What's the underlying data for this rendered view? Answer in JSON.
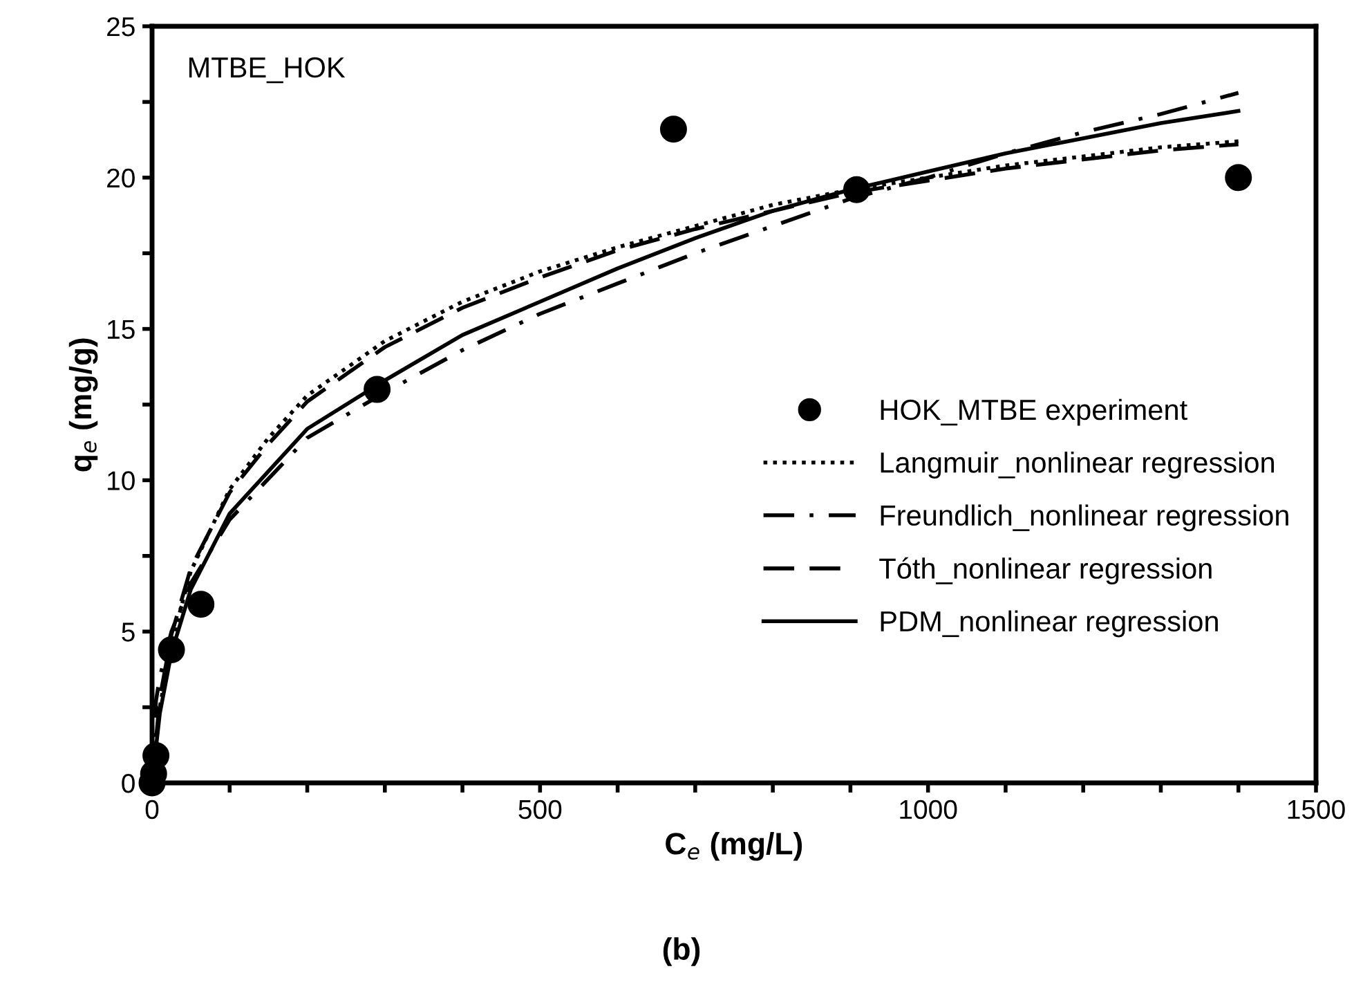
{
  "chart_data": {
    "type": "line",
    "xlabel": "C$_{e}$ (mg/L)",
    "ylabel": "q$_{e}$ (mg/g)",
    "annotations": [
      "MTBE_HOK",
      "(b)"
    ],
    "xlim": [
      0,
      1500
    ],
    "ylim": [
      0,
      25
    ],
    "xticks": [
      0,
      {
        "value": 100,
        "label": null
      },
      {
        "value": 200,
        "label": null
      },
      {
        "value": 300,
        "label": null
      },
      {
        "value": 400,
        "label": null
      },
      500,
      {
        "value": 600,
        "label": null
      },
      {
        "value": 700,
        "label": null
      },
      {
        "value": 800,
        "label": null
      },
      {
        "value": 900,
        "label": null
      },
      1000,
      {
        "value": 1100,
        "label": null
      },
      {
        "value": 1200,
        "label": null
      },
      {
        "value": 1300,
        "label": null
      },
      {
        "value": 1400,
        "label": null
      },
      1500
    ],
    "yticks": [
      0,
      {
        "value": 2.5,
        "label": null
      },
      5,
      {
        "value": 7.5,
        "label": null
      },
      10,
      {
        "value": 12.5,
        "label": null
      },
      15,
      {
        "value": 17.5,
        "label": null
      },
      20,
      {
        "value": 22.5,
        "label": null
      },
      25
    ],
    "grid": false,
    "legend": "right",
    "series": [
      {
        "name": "HOK_MTBE experiment",
        "type": "scatter",
        "marker": "circle",
        "color": "#000000",
        "x": [
          0,
          2,
          5,
          25,
          63,
          290,
          672,
          908,
          1400
        ],
        "values": [
          0,
          0.3,
          0.9,
          4.4,
          5.9,
          13.0,
          21.6,
          19.6,
          20.0
        ]
      },
      {
        "name": "Langmuir_nonlinear regression",
        "line_style": "dotted",
        "color": "#000000",
        "x": [
          0,
          10,
          25,
          50,
          100,
          150,
          200,
          300,
          400,
          500,
          600,
          700,
          800,
          900,
          1000,
          1100,
          1200,
          1300,
          1400
        ],
        "values": [
          0,
          2.5,
          4.6,
          7.0,
          9.7,
          11.4,
          12.8,
          14.6,
          15.9,
          16.9,
          17.7,
          18.4,
          19.1,
          19.6,
          20.0,
          20.4,
          20.7,
          21.0,
          21.2
        ]
      },
      {
        "name": "Freundlich_nonlinear regression",
        "line_style": "dashdot",
        "color": "#000000",
        "x": [
          0,
          5,
          10,
          25,
          50,
          100,
          200,
          300,
          400,
          500,
          600,
          700,
          800,
          900,
          1000,
          1100,
          1200,
          1300,
          1400
        ],
        "values": [
          0,
          2.7,
          3.5,
          5.0,
          6.6,
          8.7,
          11.4,
          12.9,
          14.3,
          15.5,
          16.5,
          17.5,
          18.4,
          19.3,
          20.0,
          20.8,
          21.5,
          22.1,
          22.8
        ]
      },
      {
        "name": "Tóth_nonlinear regression",
        "line_style": "dashed",
        "color": "#000000",
        "x": [
          0,
          10,
          25,
          50,
          100,
          150,
          200,
          300,
          400,
          500,
          600,
          700,
          800,
          900,
          1000,
          1100,
          1200,
          1300,
          1400
        ],
        "values": [
          0,
          2.8,
          4.9,
          7.1,
          9.6,
          11.2,
          12.6,
          14.4,
          15.7,
          16.7,
          17.6,
          18.3,
          18.9,
          19.5,
          19.9,
          20.3,
          20.6,
          20.9,
          21.1
        ]
      },
      {
        "name": "PDM_nonlinear regression",
        "line_style": "solid",
        "color": "#000000",
        "x": [
          0,
          10,
          25,
          50,
          100,
          200,
          300,
          400,
          500,
          600,
          700,
          800,
          900,
          1000,
          1100,
          1200,
          1300,
          1400
        ],
        "values": [
          0,
          2.3,
          4.3,
          6.4,
          8.9,
          11.7,
          13.3,
          14.8,
          15.9,
          17.0,
          18.0,
          18.9,
          19.6,
          20.2,
          20.8,
          21.3,
          21.8,
          22.2
        ]
      }
    ]
  }
}
